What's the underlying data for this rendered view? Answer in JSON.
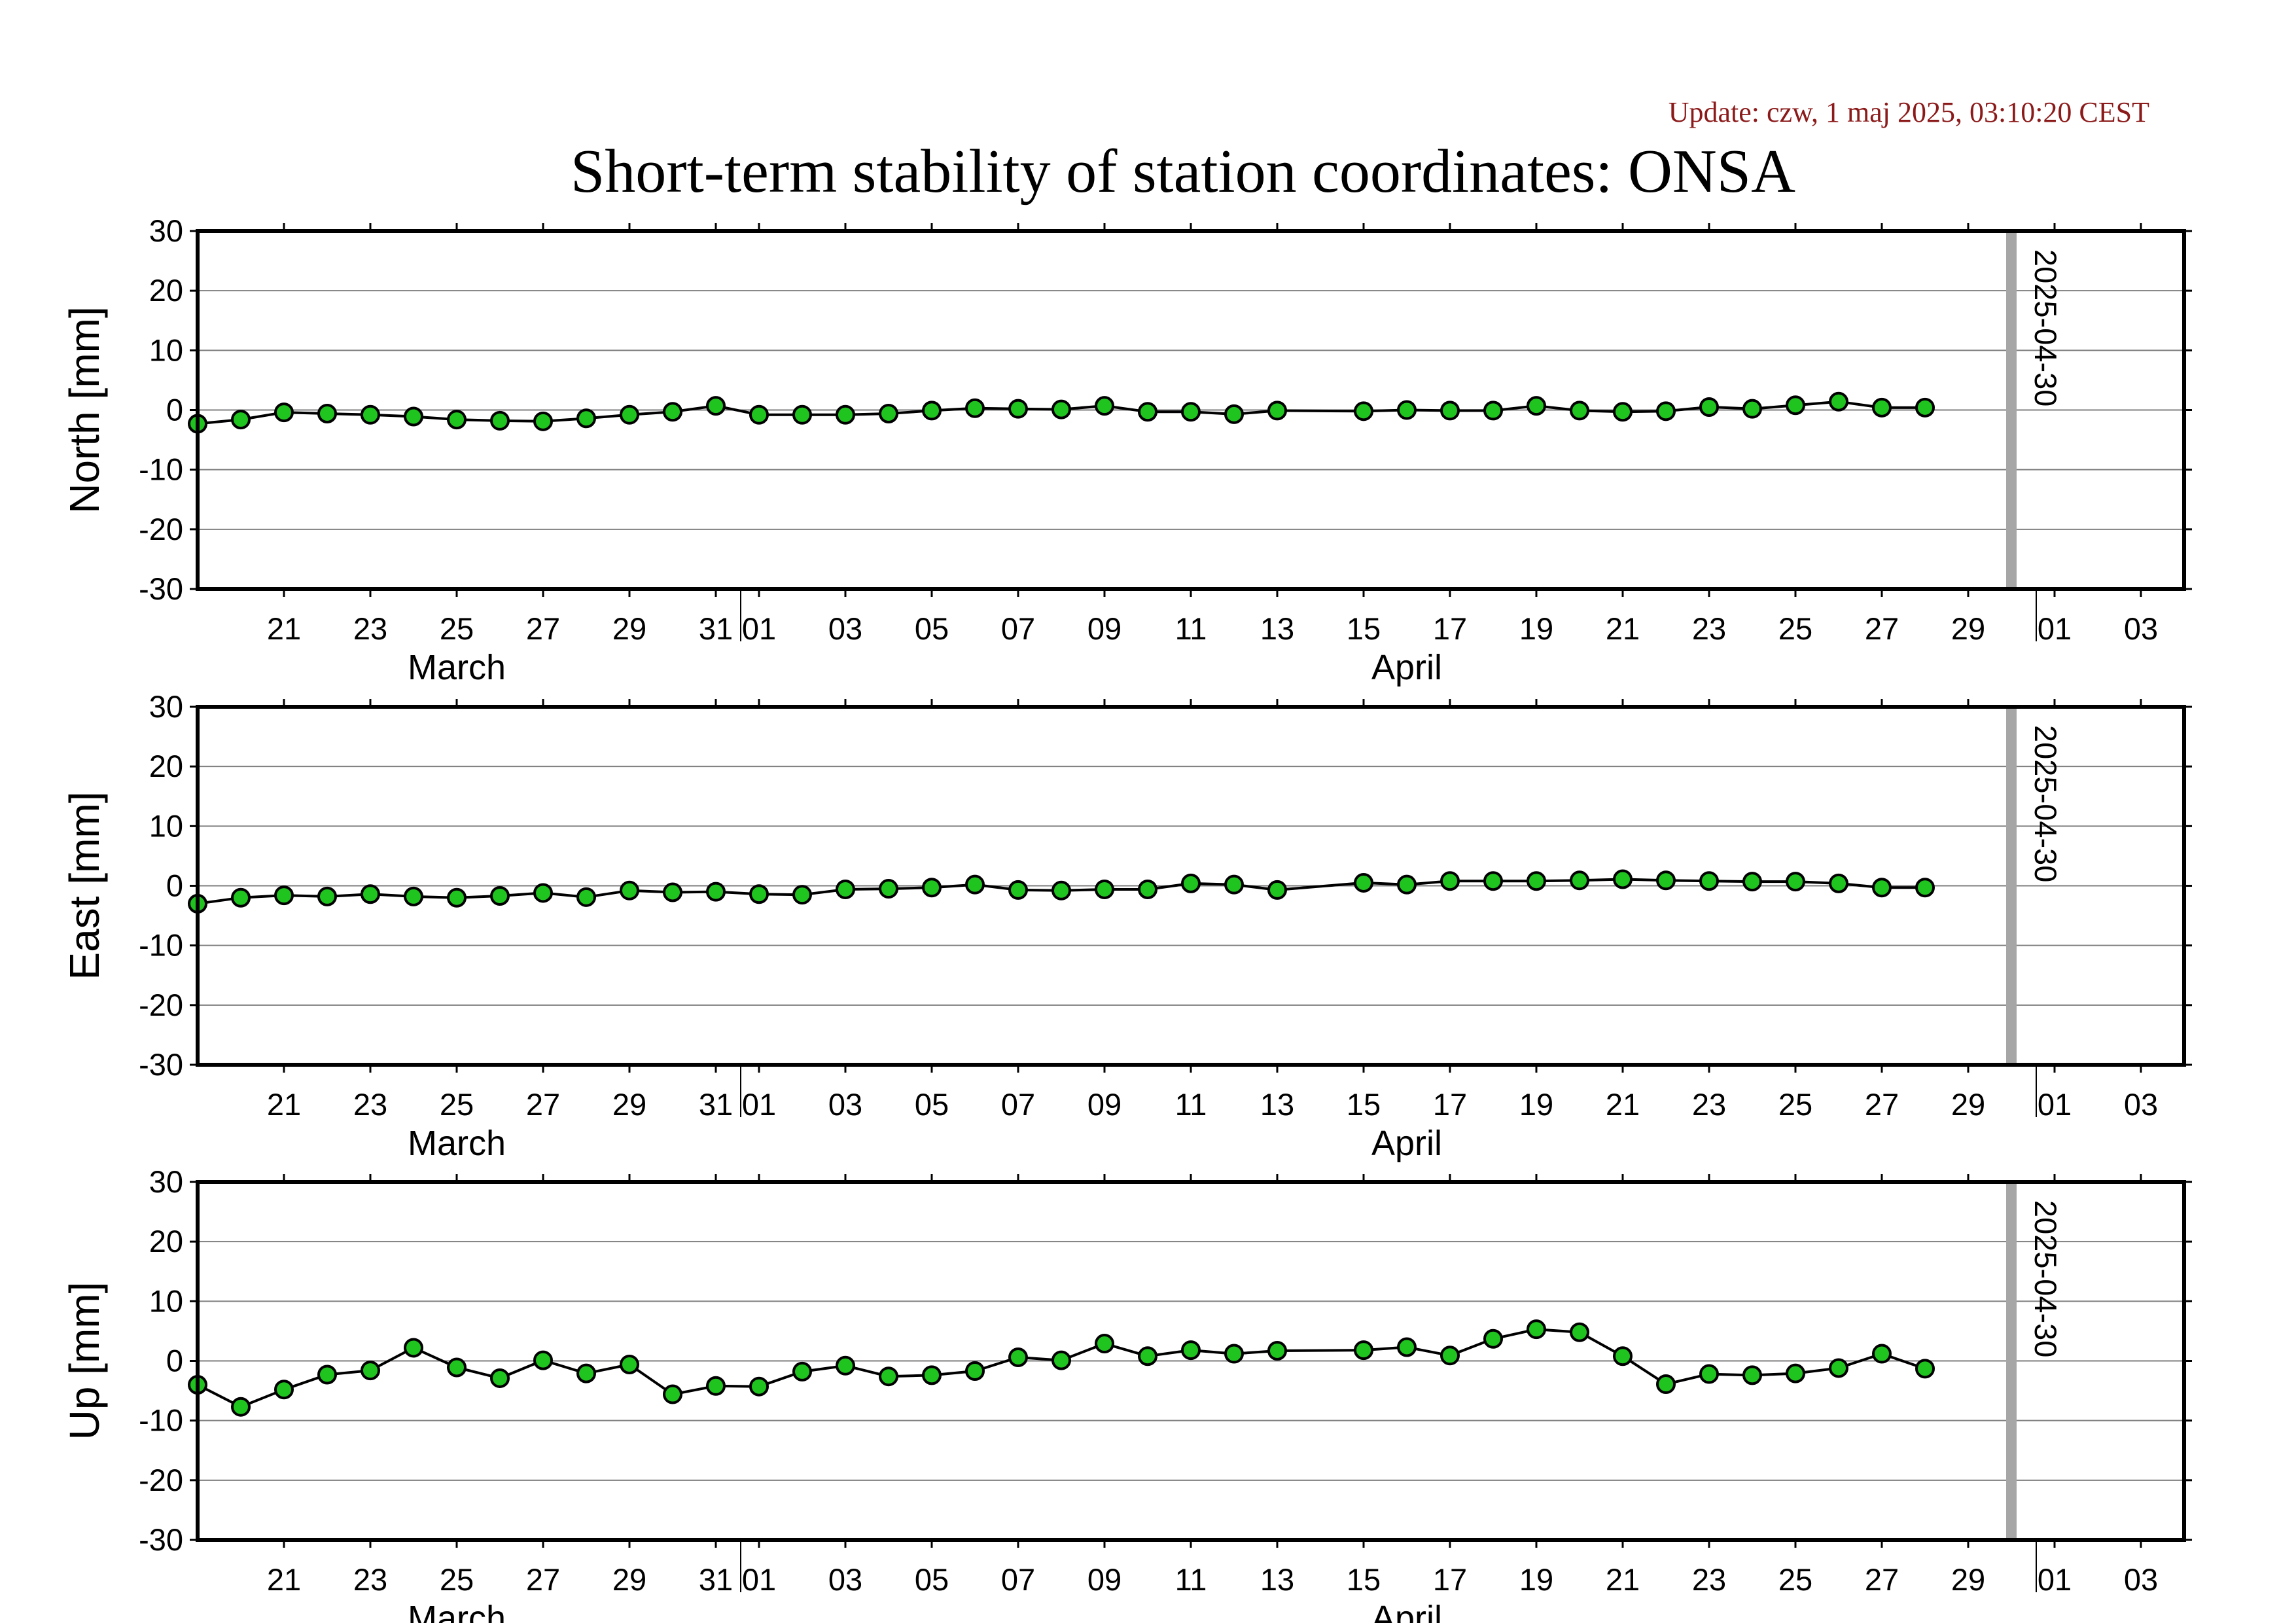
{
  "update_text": "Update: czw, 1 maj 2025, 03:10:20 CEST",
  "colors": {
    "background": "#ffffff",
    "grid": "#7f7f7f",
    "frame": "#000000",
    "line": "#000000",
    "marker_fill": "#1fc41f",
    "marker_stroke": "#000000",
    "vline": "#a6a6a6",
    "update": "#8b1a1a"
  },
  "chart_data": {
    "type": "line",
    "title": "Short-term stability of station coordinates: ONSA",
    "x_range": [
      "2025-03-19",
      "2025-05-04"
    ],
    "x_ticks": [
      {
        "date": "2025-03-21",
        "label": "21"
      },
      {
        "date": "2025-03-23",
        "label": "23"
      },
      {
        "date": "2025-03-25",
        "label": "25"
      },
      {
        "date": "2025-03-27",
        "label": "27"
      },
      {
        "date": "2025-03-29",
        "label": "29"
      },
      {
        "date": "2025-03-31",
        "label": "31"
      },
      {
        "date": "2025-04-01",
        "label": "01"
      },
      {
        "date": "2025-04-03",
        "label": "03"
      },
      {
        "date": "2025-04-05",
        "label": "05"
      },
      {
        "date": "2025-04-07",
        "label": "07"
      },
      {
        "date": "2025-04-09",
        "label": "09"
      },
      {
        "date": "2025-04-11",
        "label": "11"
      },
      {
        "date": "2025-04-13",
        "label": "13"
      },
      {
        "date": "2025-04-15",
        "label": "15"
      },
      {
        "date": "2025-04-17",
        "label": "17"
      },
      {
        "date": "2025-04-19",
        "label": "19"
      },
      {
        "date": "2025-04-21",
        "label": "21"
      },
      {
        "date": "2025-04-23",
        "label": "23"
      },
      {
        "date": "2025-04-25",
        "label": "25"
      },
      {
        "date": "2025-04-27",
        "label": "27"
      },
      {
        "date": "2025-04-29",
        "label": "29"
      },
      {
        "date": "2025-05-01",
        "label": "01"
      },
      {
        "date": "2025-05-03",
        "label": "03"
      }
    ],
    "month_boundaries": [
      "2025-04-01",
      "2025-05-01"
    ],
    "months": [
      {
        "label": "March",
        "center": "2025-03-25"
      },
      {
        "label": "April",
        "center": "2025-04-16"
      }
    ],
    "marker_date": "2025-04-30",
    "marker_label": "2025-04-30",
    "y_ticks": [
      30,
      20,
      10,
      0,
      -10,
      -20,
      -30
    ],
    "x": [
      "2025-03-19",
      "2025-03-20",
      "2025-03-21",
      "2025-03-22",
      "2025-03-23",
      "2025-03-24",
      "2025-03-25",
      "2025-03-26",
      "2025-03-27",
      "2025-03-28",
      "2025-03-29",
      "2025-03-30",
      "2025-03-31",
      "2025-04-01",
      "2025-04-02",
      "2025-04-03",
      "2025-04-04",
      "2025-04-05",
      "2025-04-06",
      "2025-04-07",
      "2025-04-08",
      "2025-04-09",
      "2025-04-10",
      "2025-04-11",
      "2025-04-12",
      "2025-04-13",
      "2025-04-15",
      "2025-04-16",
      "2025-04-17",
      "2025-04-18",
      "2025-04-19",
      "2025-04-20",
      "2025-04-21",
      "2025-04-22",
      "2025-04-23",
      "2025-04-24",
      "2025-04-25",
      "2025-04-26",
      "2025-04-27",
      "2025-04-28"
    ],
    "panels": [
      {
        "ylabel": "North [mm]",
        "ylim": [
          -30,
          30
        ],
        "values": [
          -2.3,
          -1.6,
          -0.4,
          -0.6,
          -0.8,
          -1.1,
          -1.6,
          -1.8,
          -1.9,
          -1.4,
          -0.8,
          -0.3,
          0.7,
          -0.8,
          -0.8,
          -0.8,
          -0.6,
          -0.1,
          0.3,
          0.2,
          0.1,
          0.7,
          -0.3,
          -0.3,
          -0.7,
          -0.1,
          -0.2,
          0.0,
          -0.1,
          -0.1,
          0.7,
          -0.1,
          -0.3,
          -0.2,
          0.5,
          0.2,
          0.8,
          1.4,
          0.4,
          0.4
        ]
      },
      {
        "ylabel": "East [mm]",
        "ylim": [
          -30,
          30
        ],
        "values": [
          -3.0,
          -2.0,
          -1.6,
          -1.8,
          -1.4,
          -1.8,
          -2.0,
          -1.7,
          -1.2,
          -1.9,
          -0.8,
          -1.1,
          -1.0,
          -1.4,
          -1.5,
          -0.6,
          -0.5,
          -0.3,
          0.2,
          -0.7,
          -0.8,
          -0.6,
          -0.6,
          0.4,
          0.2,
          -0.7,
          0.5,
          0.2,
          0.8,
          0.8,
          0.8,
          0.9,
          1.1,
          0.9,
          0.8,
          0.7,
          0.7,
          0.4,
          -0.3,
          -0.3
        ]
      },
      {
        "ylabel": "Up [mm]",
        "ylim": [
          -30,
          30
        ],
        "values": [
          -4.0,
          -7.7,
          -4.8,
          -2.3,
          -1.6,
          2.2,
          -1.1,
          -2.9,
          0.1,
          -2.1,
          -0.6,
          -5.6,
          -4.2,
          -4.3,
          -1.8,
          -0.8,
          -2.6,
          -2.4,
          -1.7,
          0.6,
          0.1,
          2.9,
          0.8,
          1.8,
          1.2,
          1.7,
          1.8,
          2.3,
          0.9,
          3.7,
          5.3,
          4.8,
          0.8,
          -3.9,
          -2.2,
          -2.4,
          -2.1,
          -1.2,
          1.2,
          -1.3
        ]
      }
    ]
  }
}
